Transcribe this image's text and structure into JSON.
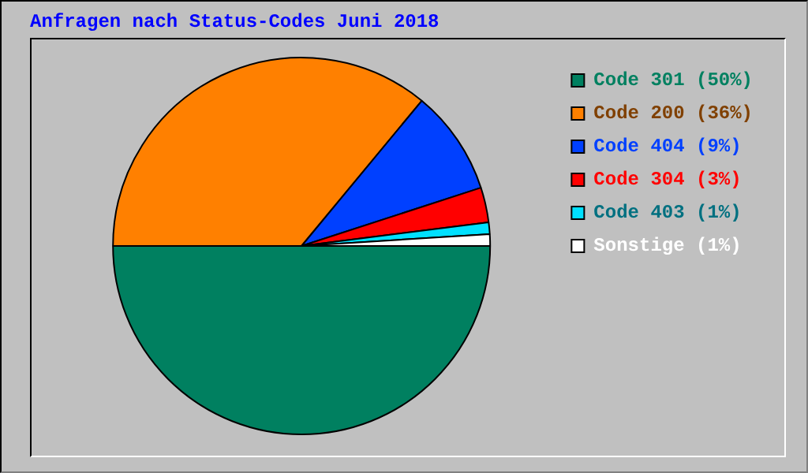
{
  "chart_data": {
    "type": "pie",
    "title": "Anfragen nach Status-Codes Juni 2018",
    "categories": [
      "Code 301 (50%)",
      "Code 200 (36%)",
      "Code 404 (9%)",
      "Code 304 (3%)",
      "Code 403 (1%)",
      "Sonstige (1%)"
    ],
    "values": [
      50,
      36,
      9,
      3,
      1,
      1
    ],
    "colors": [
      "#008060",
      "#ff8000",
      "#0040ff",
      "#ff0000",
      "#00e0ff",
      "#ffffff"
    ],
    "legend": "right"
  }
}
